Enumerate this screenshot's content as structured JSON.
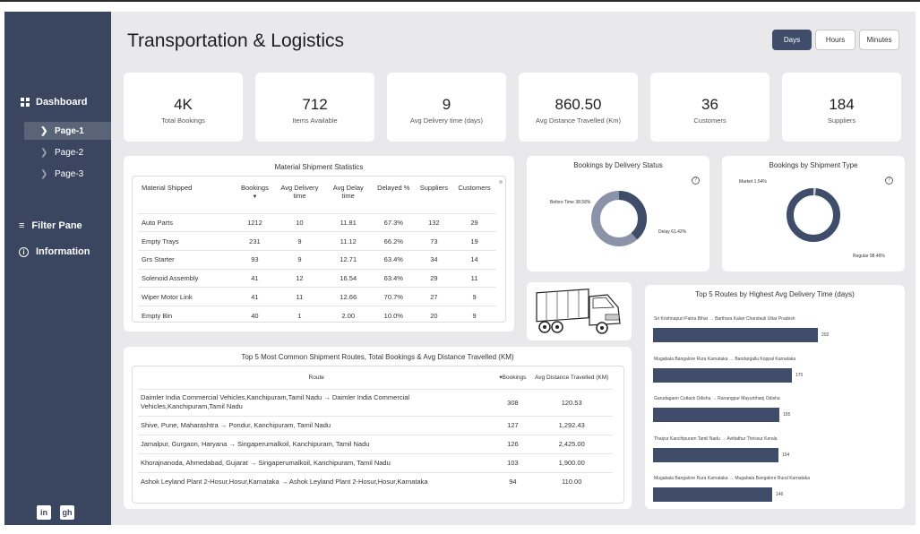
{
  "app": {
    "title": "Transportation & Logistics"
  },
  "sidebar": {
    "dashboard": "Dashboard",
    "pages": [
      "Page-1",
      "Page-2",
      "Page-3"
    ],
    "filter": "Filter Pane",
    "info": "Information",
    "social": [
      "in",
      "gh"
    ]
  },
  "time_toggle": [
    "Days",
    "Hours",
    "Minutes"
  ],
  "kpis": [
    {
      "value": "4K",
      "label": "Total Bookings"
    },
    {
      "value": "712",
      "label": "Items Available"
    },
    {
      "value": "9",
      "label": "Avg Delivery time (days)"
    },
    {
      "value": "860.50",
      "label": "Avg Distance Travelled (Km)"
    },
    {
      "value": "36",
      "label": "Customers"
    },
    {
      "value": "184",
      "label": "Suppliers"
    }
  ],
  "material": {
    "title": "Material Shipment Statistics",
    "columns": [
      "Material Shipped",
      "Bookings",
      "Avg Delivery time",
      "Avg Delay time",
      "Delayed %",
      "Suppliers",
      "Customers"
    ],
    "rows": [
      [
        "Auto Parts",
        "1212",
        "10",
        "11.81",
        "67.3%",
        "132",
        "29"
      ],
      [
        "Empty Trays",
        "231",
        "9",
        "11.12",
        "66.2%",
        "73",
        "19"
      ],
      [
        "Grs Starter",
        "93",
        "9",
        "12.71",
        "63.4%",
        "34",
        "14"
      ],
      [
        "Solenoid Assembly",
        "41",
        "12",
        "16.54",
        "63.4%",
        "29",
        "11"
      ],
      [
        "Wiper Motor Link",
        "41",
        "11",
        "12.66",
        "70.7%",
        "27",
        "9"
      ],
      [
        "Empty Bin",
        "40",
        "1",
        "2.00",
        "10.0%",
        "20",
        "9"
      ]
    ]
  },
  "delivery_status": {
    "title": "Bookings by Delivery Status",
    "labels": [
      "Before Time 38.58%",
      "Delay 61.42%"
    ]
  },
  "shipment_type": {
    "title": "Bookings by Shipment Type",
    "labels": [
      "Market 1.54%",
      "Regular 98.46%"
    ]
  },
  "routes": {
    "title": "Top 5 Most Common Shipment Routes, Total Bookings & Avg Distance Travelled (KM)",
    "columns": [
      "Route",
      "Bookings",
      "Avg Distance Travelled (KM)"
    ],
    "rows": [
      [
        "Daimler India Commercial Vehicles,Kanchipuram,Tamil Nadu → Daimler India Commercial Vehicles,Kanchipuram,Tamil Nadu",
        "308",
        "120.53"
      ],
      [
        "Shive, Pune, Maharashtra → Pondur, Kanchipuram, Tamil Nadu",
        "127",
        "1,292.43"
      ],
      [
        "Jamalpur, Gurgaon, Haryana → Singaperumalkoil, Kanchipuram, Tamil Nadu",
        "126",
        "2,425.00"
      ],
      [
        "Khorajnanoda, Ahmedabad, Gujarat → Singaperumalkoil, Kanchipuram, Tamil Nadu",
        "103",
        "1,900.00"
      ],
      [
        "Ashok Leyland Plant 2-Hosur,Hosur,Karnataka → Ashok Leyland Plant 2-Hosur,Hosur,Karnataka",
        "94",
        "110.00"
      ]
    ]
  },
  "chart_data": {
    "type": "bar",
    "title": "Top 5 Routes by Highest Avg Delivery Time (days)",
    "categories": [
      "Sri Krishnapuri Patna Bihar → Barthara Kalan Chandauli Uttar Pradesh",
      "Mugabala Bangalore Rura Karnataka → Bandargallu Koppal Karnataka",
      "Garudagaon Cuttack Odisha → Rairangpur Mayurbhanj Odisha",
      "Thaiyur Kanchipuram Tamil Nadu → Avittathur Thrissur Kerala",
      "Mugabala Bangalore Rura Karnataka → Mugabala Bangalore Rural Karnataka"
    ],
    "values": [
      202,
      170,
      155,
      154,
      146
    ],
    "value_labels": [
      "202",
      "170",
      "155",
      "154",
      "146"
    ],
    "orientation": "horizontal",
    "xlim": [
      0,
      202
    ]
  },
  "colors": {
    "sidebar": "#3a4660",
    "accent": "#3f4d6b",
    "donut_light": "#8a93a8",
    "background": "#e9e9eb"
  }
}
